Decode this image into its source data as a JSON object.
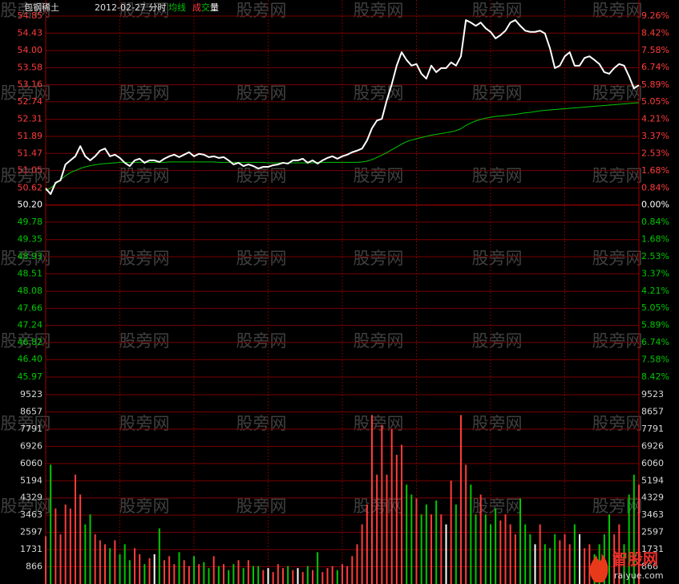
{
  "chart_data": {
    "type": "line",
    "title": "包钢稀土",
    "subtitle": "2012-02-27 分时",
    "watermark": "股旁网",
    "logo": {
      "name": "智股网",
      "url": "raiyue.com"
    },
    "base": {
      "value": 50.2,
      "label": "50.20"
    },
    "grid": true,
    "grid_color": "#7a0000",
    "up_color": "#ff3c3c",
    "down_color": "#00c800",
    "flat_color": "#ffffff",
    "xlim": [
      0,
      240
    ],
    "xticks": [
      30,
      60,
      90,
      120,
      150,
      180,
      210
    ],
    "x": [
      0,
      2,
      4,
      6,
      8,
      10,
      12,
      14,
      16,
      18,
      20,
      22,
      24,
      26,
      28,
      30,
      32,
      34,
      36,
      38,
      40,
      42,
      44,
      46,
      48,
      50,
      52,
      54,
      56,
      58,
      60,
      62,
      64,
      66,
      68,
      70,
      72,
      74,
      76,
      78,
      80,
      82,
      84,
      86,
      88,
      90,
      92,
      94,
      96,
      98,
      100,
      102,
      104,
      106,
      108,
      110,
      112,
      114,
      116,
      118,
      120,
      122,
      124,
      126,
      128,
      130,
      132,
      134,
      136,
      138,
      140,
      142,
      144,
      146,
      148,
      150,
      152,
      154,
      156,
      158,
      160,
      162,
      164,
      166,
      168,
      170,
      172,
      174,
      176,
      178,
      180,
      182,
      184,
      186,
      188,
      190,
      192,
      194,
      196,
      198,
      200,
      202,
      204,
      206,
      208,
      210,
      212,
      214,
      216,
      218,
      220,
      222,
      224,
      226,
      228,
      230,
      232,
      234,
      236,
      238,
      240
    ],
    "ylim": [
      45.97,
      54.85
    ],
    "yticks": [
      {
        "value": 54.85,
        "label": "54.85"
      },
      {
        "value": 54.43,
        "label": "54.43"
      },
      {
        "value": 54.0,
        "label": "54.00"
      },
      {
        "value": 53.58,
        "label": "53.58"
      },
      {
        "value": 53.16,
        "label": "53.16"
      },
      {
        "value": 52.74,
        "label": "52.74"
      },
      {
        "value": 52.31,
        "label": "52.31"
      },
      {
        "value": 51.89,
        "label": "51.89"
      },
      {
        "value": 51.47,
        "label": "51.47"
      },
      {
        "value": 51.05,
        "label": "51.05"
      },
      {
        "value": 50.62,
        "label": "50.62"
      },
      {
        "value": 50.2,
        "label": "50.20"
      },
      {
        "value": 49.78,
        "label": "49.78"
      },
      {
        "value": 49.35,
        "label": "49.35"
      },
      {
        "value": 48.93,
        "label": "48.93"
      },
      {
        "value": 48.51,
        "label": "48.51"
      },
      {
        "value": 48.08,
        "label": "48.08"
      },
      {
        "value": 47.66,
        "label": "47.66"
      },
      {
        "value": 47.24,
        "label": "47.24"
      },
      {
        "value": 46.82,
        "label": "46.82"
      },
      {
        "value": 46.4,
        "label": "46.40"
      },
      {
        "value": 45.97,
        "label": "45.97"
      }
    ],
    "y2lim": [
      -8.42,
      9.26
    ],
    "y2ticks": [
      {
        "value": 9.26,
        "label": "9.26%"
      },
      {
        "value": 8.42,
        "label": "8.42%"
      },
      {
        "value": 7.58,
        "label": "7.58%"
      },
      {
        "value": 6.74,
        "label": "6.74%"
      },
      {
        "value": 5.89,
        "label": "5.89%"
      },
      {
        "value": 5.05,
        "label": "5.05%"
      },
      {
        "value": 4.21,
        "label": "4.21%"
      },
      {
        "value": 3.37,
        "label": "3.37%"
      },
      {
        "value": 2.53,
        "label": "2.53%"
      },
      {
        "value": 1.68,
        "label": "1.68%"
      },
      {
        "value": 0.84,
        "label": "0.84%"
      },
      {
        "value": 0,
        "label": "0.00%"
      },
      {
        "value": -0.84,
        "label": "0.84%"
      },
      {
        "value": -1.68,
        "label": "1.68%"
      },
      {
        "value": -2.53,
        "label": "2.53%"
      },
      {
        "value": -3.37,
        "label": "3.37%"
      },
      {
        "value": -4.21,
        "label": "4.21%"
      },
      {
        "value": -5.05,
        "label": "5.05%"
      },
      {
        "value": -5.89,
        "label": "5.89%"
      },
      {
        "value": -6.74,
        "label": "6.74%"
      },
      {
        "value": -7.58,
        "label": "7.58%"
      },
      {
        "value": -8.42,
        "label": "8.42%"
      }
    ],
    "series": [
      {
        "color": "#ffffff",
        "values": [
          50.61,
          50.47,
          50.75,
          50.81,
          51.2,
          51.3,
          51.4,
          51.65,
          51.4,
          51.3,
          51.4,
          51.54,
          51.59,
          51.4,
          51.44,
          51.36,
          51.24,
          51.16,
          51.3,
          51.34,
          51.24,
          51.3,
          51.3,
          51.26,
          51.34,
          51.4,
          51.44,
          51.38,
          51.44,
          51.5,
          51.4,
          51.46,
          51.44,
          51.38,
          51.4,
          51.36,
          51.38,
          51.3,
          51.2,
          51.24,
          51.16,
          51.2,
          51.16,
          51.1,
          51.14,
          51.14,
          51.18,
          51.2,
          51.24,
          51.22,
          51.3,
          51.3,
          51.34,
          51.24,
          51.3,
          51.22,
          51.3,
          51.36,
          51.4,
          51.34,
          51.4,
          51.44,
          51.5,
          51.54,
          51.59,
          51.79,
          52.09,
          52.28,
          52.32,
          52.78,
          53.17,
          53.63,
          53.96,
          53.77,
          53.63,
          53.67,
          53.43,
          53.31,
          53.63,
          53.47,
          53.57,
          53.57,
          53.71,
          53.63,
          53.86,
          54.75,
          54.69,
          54.61,
          54.69,
          54.55,
          54.46,
          54.3,
          54.38,
          54.49,
          54.69,
          54.75,
          54.61,
          54.49,
          54.46,
          54.46,
          54.49,
          54.42,
          54.06,
          53.57,
          53.63,
          53.86,
          53.96,
          53.63,
          53.63,
          53.82,
          53.86,
          53.77,
          53.67,
          53.47,
          53.43,
          53.57,
          53.67,
          53.63,
          53.37,
          53.07,
          53.15
        ]
      },
      {
        "name": "均线",
        "color": "#00c800",
        "values": [
          50.55,
          50.62,
          50.72,
          50.82,
          50.92,
          51.0,
          51.05,
          51.1,
          51.14,
          51.17,
          51.19,
          51.21,
          51.22,
          51.23,
          51.24,
          51.25,
          51.25,
          51.25,
          51.25,
          51.25,
          51.25,
          51.25,
          51.25,
          51.25,
          51.25,
          51.26,
          51.26,
          51.26,
          51.26,
          51.26,
          51.26,
          51.26,
          51.26,
          51.26,
          51.26,
          51.25,
          51.25,
          51.25,
          51.25,
          51.25,
          51.25,
          51.25,
          51.25,
          51.25,
          51.25,
          51.24,
          51.24,
          51.24,
          51.24,
          51.24,
          51.24,
          51.24,
          51.24,
          51.24,
          51.24,
          51.25,
          51.25,
          51.25,
          51.25,
          51.25,
          51.25,
          51.25,
          51.25,
          51.25,
          51.26,
          51.28,
          51.32,
          51.37,
          51.43,
          51.49,
          51.56,
          51.63,
          51.7,
          51.76,
          51.8,
          51.83,
          51.86,
          51.89,
          51.92,
          51.94,
          51.96,
          51.98,
          52.0,
          52.03,
          52.08,
          52.16,
          52.22,
          52.27,
          52.31,
          52.34,
          52.36,
          52.38,
          52.39,
          52.4,
          52.42,
          52.43,
          52.45,
          52.47,
          52.48,
          52.5,
          52.52,
          52.53,
          52.54,
          52.55,
          52.56,
          52.57,
          52.58,
          52.59,
          52.6,
          52.61,
          52.62,
          52.63,
          52.64,
          52.65,
          52.66,
          52.67,
          52.68,
          52.69,
          52.7,
          52.71,
          52.72
        ]
      }
    ],
    "volume": {
      "name": "成交量",
      "ylim": [
        0,
        9523
      ],
      "yticks": [
        9523,
        8657,
        7791,
        6926,
        6060,
        5194,
        4329,
        3463,
        2597,
        1731,
        866
      ],
      "values": [
        2400,
        6000,
        3800,
        2500,
        4000,
        3800,
        5500,
        4500,
        3000,
        3500,
        2500,
        2200,
        2000,
        1800,
        2200,
        1500,
        2000,
        1200,
        1800,
        1500,
        1000,
        1300,
        1500,
        2800,
        1200,
        1400,
        1000,
        1600,
        1200,
        900,
        1400,
        1000,
        1100,
        800,
        1400,
        900,
        1000,
        700,
        1000,
        1200,
        800,
        1200,
        900,
        900,
        700,
        800,
        600,
        1000,
        800,
        900,
        700,
        800,
        600,
        900,
        700,
        1600,
        600,
        800,
        900,
        700,
        1000,
        900,
        1400,
        2000,
        3000,
        4000,
        8500,
        5500,
        8000,
        5500,
        7800,
        6500,
        7000,
        5000,
        4500,
        4300,
        3500,
        4000,
        3500,
        4200,
        3500,
        3000,
        5200,
        4000,
        8500,
        6000,
        5000,
        3500,
        4500,
        3500,
        3000,
        3800,
        3200,
        3500,
        3000,
        2500,
        4300,
        3000,
        2500,
        2000,
        3000,
        2000,
        1800,
        2500,
        2200,
        2500,
        2000,
        3000,
        2500,
        1800,
        2000,
        1500,
        2000,
        2500,
        3500,
        2500,
        3000,
        2000,
        4500,
        5500,
        5000
      ]
    }
  }
}
